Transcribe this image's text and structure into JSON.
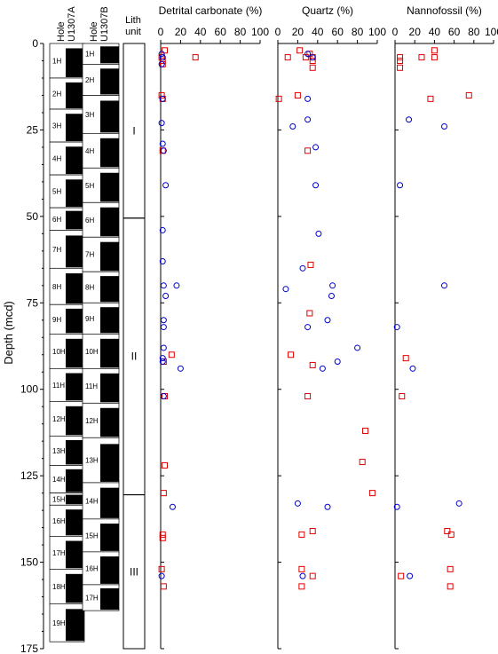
{
  "chart_data": {
    "type": "scatter",
    "ylabel": "Depth (mcd)",
    "ylim": [
      175,
      0
    ],
    "yticks": [
      0,
      25,
      50,
      75,
      100,
      125,
      150,
      175
    ],
    "xticks": [
      0,
      20,
      40,
      60,
      80,
      100
    ],
    "series_colors": {
      "blue": "#0000cc",
      "red": "#e00000"
    },
    "headers": {
      "hole_a": [
        "Hole",
        "U1307A"
      ],
      "hole_b": [
        "Hole",
        "U1307B"
      ],
      "lith": [
        "Lith",
        "unit"
      ]
    },
    "hole_a_cores": [
      {
        "label": "1H",
        "top": 0,
        "bottom": 10
      },
      {
        "label": "2H",
        "top": 10,
        "bottom": 19
      },
      {
        "label": "3H",
        "top": 19,
        "bottom": 28.5
      },
      {
        "label": "4H",
        "top": 28.5,
        "bottom": 38
      },
      {
        "label": "5H",
        "top": 38,
        "bottom": 47.5
      },
      {
        "label": "6H",
        "top": 47.5,
        "bottom": 54
      },
      {
        "label": "7H",
        "top": 54,
        "bottom": 65
      },
      {
        "label": "8H",
        "top": 65,
        "bottom": 75.5
      },
      {
        "label": "9H",
        "top": 75.5,
        "bottom": 84
      },
      {
        "label": "10H",
        "top": 84,
        "bottom": 94
      },
      {
        "label": "11H",
        "top": 94,
        "bottom": 103.5
      },
      {
        "label": "12H",
        "top": 103.5,
        "bottom": 113.5
      },
      {
        "label": "13H",
        "top": 113.5,
        "bottom": 122
      },
      {
        "label": "14H",
        "top": 122,
        "bottom": 130
      },
      {
        "label": "15H",
        "top": 130,
        "bottom": 133.5
      },
      {
        "label": "16H",
        "top": 133.5,
        "bottom": 142.5
      },
      {
        "label": "17H",
        "top": 142.5,
        "bottom": 152
      },
      {
        "label": "18H",
        "top": 152,
        "bottom": 162
      },
      {
        "label": "19H",
        "top": 162,
        "bottom": 173
      }
    ],
    "hole_b_cores": [
      {
        "label": "1H",
        "top": 0,
        "bottom": 6
      },
      {
        "label": "2H",
        "top": 6,
        "bottom": 15
      },
      {
        "label": "3H",
        "top": 15,
        "bottom": 26
      },
      {
        "label": "4H",
        "top": 26,
        "bottom": 36
      },
      {
        "label": "5H",
        "top": 36,
        "bottom": 46
      },
      {
        "label": "6H",
        "top": 46,
        "bottom": 56
      },
      {
        "label": "7H",
        "top": 56,
        "bottom": 66
      },
      {
        "label": "8H",
        "top": 66,
        "bottom": 75
      },
      {
        "label": "9H",
        "top": 75,
        "bottom": 84
      },
      {
        "label": "10H",
        "top": 84,
        "bottom": 94
      },
      {
        "label": "11H",
        "top": 94,
        "bottom": 104
      },
      {
        "label": "12H",
        "top": 104,
        "bottom": 114
      },
      {
        "label": "13H",
        "top": 114,
        "bottom": 127
      },
      {
        "label": "14H",
        "top": 127,
        "bottom": 137.5
      },
      {
        "label": "15H",
        "top": 137.5,
        "bottom": 147
      },
      {
        "label": "16H",
        "top": 147,
        "bottom": 156.5
      },
      {
        "label": "17H",
        "top": 156.5,
        "bottom": 164
      }
    ],
    "lith_units": [
      {
        "label": "I",
        "top": 0,
        "bottom": 50.5
      },
      {
        "label": "II",
        "top": 50.5,
        "bottom": 130.5
      },
      {
        "label": "III",
        "top": 130.5,
        "bottom": 175
      }
    ],
    "panels": [
      {
        "title": "Detrital carbonate (%)",
        "xlim": [
          0,
          100
        ],
        "blue": [
          [
            1,
            3
          ],
          [
            2,
            4
          ],
          [
            1,
            6
          ],
          [
            2,
            16
          ],
          [
            1,
            23
          ],
          [
            2,
            29
          ],
          [
            3,
            31
          ],
          [
            5,
            41
          ],
          [
            2,
            54
          ],
          [
            2,
            63
          ],
          [
            3,
            70
          ],
          [
            16,
            70
          ],
          [
            5,
            73
          ],
          [
            3,
            80
          ],
          [
            3,
            82
          ],
          [
            3,
            88
          ],
          [
            2,
            91
          ],
          [
            2,
            92
          ],
          [
            20,
            94
          ],
          [
            3,
            102
          ],
          [
            12,
            134
          ],
          [
            1,
            154
          ]
        ],
        "red": [
          [
            4,
            2
          ],
          [
            35,
            4
          ],
          [
            1,
            4
          ],
          [
            2,
            5
          ],
          [
            2,
            6
          ],
          [
            1,
            15
          ],
          [
            2,
            16
          ],
          [
            2,
            31
          ],
          [
            11,
            90
          ],
          [
            3,
            92
          ],
          [
            4,
            102
          ],
          [
            4,
            122
          ],
          [
            3,
            130
          ],
          [
            2,
            142
          ],
          [
            2,
            143
          ],
          [
            1,
            152
          ],
          [
            3,
            157
          ]
        ]
      },
      {
        "title": "Quartz (%)",
        "xlim": [
          0,
          100
        ],
        "blue": [
          [
            30,
            3
          ],
          [
            35,
            4
          ],
          [
            30,
            16
          ],
          [
            15,
            24
          ],
          [
            30,
            22
          ],
          [
            38,
            30
          ],
          [
            38,
            41
          ],
          [
            41,
            55
          ],
          [
            25,
            65
          ],
          [
            8,
            71
          ],
          [
            55,
            70
          ],
          [
            54,
            73
          ],
          [
            50,
            80
          ],
          [
            30,
            82
          ],
          [
            80,
            88
          ],
          [
            60,
            92
          ],
          [
            45,
            94
          ],
          [
            20,
            133
          ],
          [
            50,
            134
          ],
          [
            25,
            154
          ]
        ],
        "red": [
          [
            10,
            4
          ],
          [
            22,
            2
          ],
          [
            28,
            4
          ],
          [
            32,
            3
          ],
          [
            35,
            4
          ],
          [
            35,
            5
          ],
          [
            35,
            7
          ],
          [
            20,
            15
          ],
          [
            1,
            16
          ],
          [
            30,
            31
          ],
          [
            33,
            64
          ],
          [
            32,
            78
          ],
          [
            13,
            90
          ],
          [
            35,
            93
          ],
          [
            30,
            102
          ],
          [
            88,
            112
          ],
          [
            85,
            121
          ],
          [
            95,
            130
          ],
          [
            35,
            141
          ],
          [
            24,
            142
          ],
          [
            24,
            152
          ],
          [
            35,
            154
          ],
          [
            24,
            157
          ]
        ]
      },
      {
        "title": "Nannofossil (%)",
        "xlim": [
          0,
          100
        ],
        "blue": [
          [
            14,
            22
          ],
          [
            50,
            24
          ],
          [
            5,
            41
          ],
          [
            50,
            70
          ],
          [
            2,
            82
          ],
          [
            18,
            94
          ],
          [
            65,
            133
          ],
          [
            2,
            134
          ],
          [
            15,
            154
          ]
        ],
        "red": [
          [
            40,
            2
          ],
          [
            40,
            4
          ],
          [
            27,
            4
          ],
          [
            5,
            4
          ],
          [
            5,
            5
          ],
          [
            5,
            7
          ],
          [
            75,
            15
          ],
          [
            36,
            16
          ],
          [
            11,
            91
          ],
          [
            7,
            102
          ],
          [
            53,
            141
          ],
          [
            57,
            142
          ],
          [
            56,
            152
          ],
          [
            6,
            154
          ],
          [
            56,
            157
          ]
        ]
      }
    ]
  }
}
